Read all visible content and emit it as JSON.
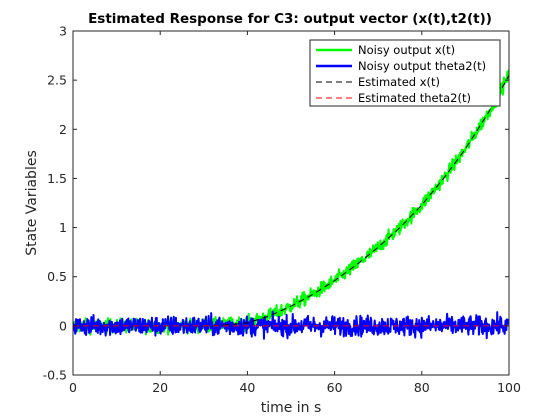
{
  "chart_data": {
    "type": "line",
    "title": "Estimated Response for C3: output vector (x(t),t2(t))",
    "xlabel": "time in s",
    "ylabel": "State Variables",
    "xlim": [
      0,
      100
    ],
    "ylim": [
      -0.5,
      3
    ],
    "xticks": [
      0,
      20,
      40,
      60,
      80,
      100
    ],
    "yticks": [
      -0.5,
      0,
      0.5,
      1,
      1.5,
      2,
      2.5,
      3
    ],
    "xtick_labels": [
      "0",
      "20",
      "40",
      "60",
      "80",
      "100"
    ],
    "ytick_labels": [
      "-0.5",
      "0",
      "0.5",
      "1",
      "1.5",
      "2",
      "2.5",
      "3"
    ],
    "grid": false,
    "legend_position": "top-right",
    "x": [
      0,
      10,
      20,
      30,
      35,
      40,
      45,
      50,
      55,
      60,
      65,
      70,
      75,
      80,
      85,
      90,
      95,
      100
    ],
    "series": [
      {
        "name": "Noisy output x(t)",
        "color": "#00ff00",
        "style": "solid",
        "width": 2,
        "noise_amplitude": 0.09,
        "values": [
          0,
          0,
          0,
          0,
          0.01,
          0.03,
          0.1,
          0.2,
          0.32,
          0.46,
          0.62,
          0.8,
          1.0,
          1.23,
          1.5,
          1.8,
          2.15,
          2.55
        ]
      },
      {
        "name": "Noisy output theta2(t)",
        "color": "#0000ff",
        "style": "solid",
        "width": 2,
        "noise_amplitude": 0.13,
        "values": [
          0,
          0,
          0,
          0,
          0,
          0,
          0,
          0,
          0,
          0,
          0,
          0,
          0,
          0,
          0,
          0,
          0,
          0
        ]
      },
      {
        "name": "Estimated x(t)",
        "color": "#000000",
        "style": "dashed",
        "width": 1,
        "values": [
          0,
          0,
          0,
          0,
          0.01,
          0.03,
          0.1,
          0.2,
          0.32,
          0.46,
          0.62,
          0.8,
          1.0,
          1.23,
          1.5,
          1.8,
          2.15,
          2.55
        ]
      },
      {
        "name": "Estimated theta2(t)",
        "color": "#ff0000",
        "style": "dashed",
        "width": 1,
        "values": [
          0,
          0,
          0,
          0,
          0,
          0,
          0,
          0,
          0,
          0,
          0,
          0,
          0,
          0,
          0,
          0,
          0,
          0
        ]
      }
    ]
  }
}
